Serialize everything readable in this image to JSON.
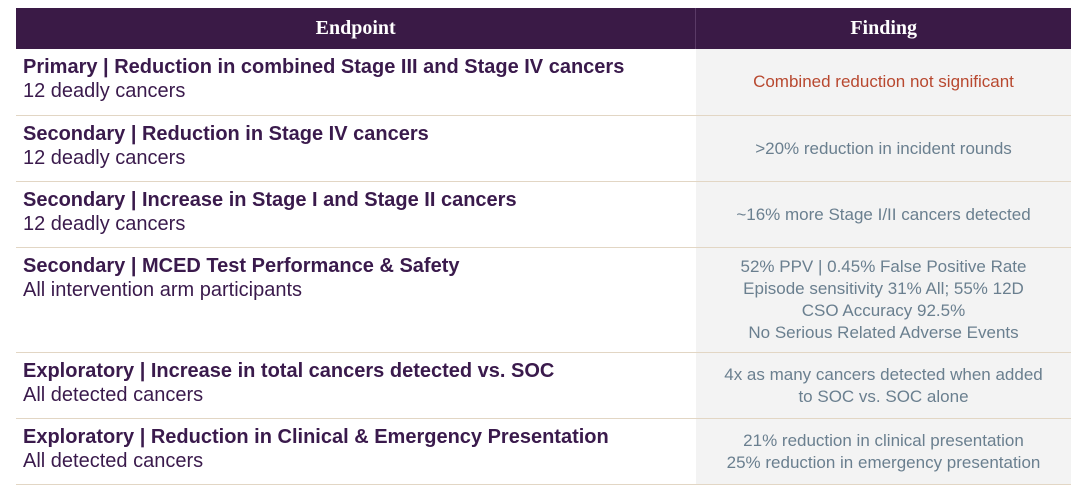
{
  "header": {
    "endpoint": "Endpoint",
    "finding": "Finding"
  },
  "rows": [
    {
      "title": "Primary | Reduction in combined Stage III and Stage IV cancers",
      "subtitle": "12 deadly cancers",
      "finding": [
        "Combined reduction not significant"
      ]
    },
    {
      "title": "Secondary | Reduction in Stage IV cancers",
      "subtitle": "12 deadly cancers",
      "finding": [
        ">20% reduction in incident rounds"
      ]
    },
    {
      "title": "Secondary | Increase in Stage I and Stage II cancers",
      "subtitle": "12 deadly cancers",
      "finding": [
        "~16% more Stage I/II cancers detected"
      ]
    },
    {
      "title": "Secondary | MCED Test Performance & Safety",
      "subtitle": "All intervention arm participants",
      "finding": [
        "52% PPV | 0.45% False Positive Rate",
        "Episode sensitivity 31% All; 55% 12D",
        "CSO Accuracy 92.5%",
        "No Serious Related Adverse Events"
      ]
    },
    {
      "title": "Exploratory | Increase in total cancers detected vs. SOC",
      "subtitle": "All detected cancers",
      "finding": [
        "4x as many cancers detected when added",
        "to SOC vs. SOC alone"
      ]
    },
    {
      "title": "Exploratory | Reduction in Clinical & Emergency Presentation",
      "subtitle": "All detected cancers",
      "finding": [
        "21% reduction in clinical presentation",
        "25% reduction in emergency presentation"
      ]
    }
  ],
  "colors": {
    "header_bg": "#3a1a46",
    "header_text": "#ffffff",
    "endpoint_text": "#3a1a4c",
    "finding_text": "#6a7f8f",
    "finding_alert": "#b8482f",
    "finding_bg": "#f3f3f3",
    "row_divider": "#e2d6c4"
  }
}
